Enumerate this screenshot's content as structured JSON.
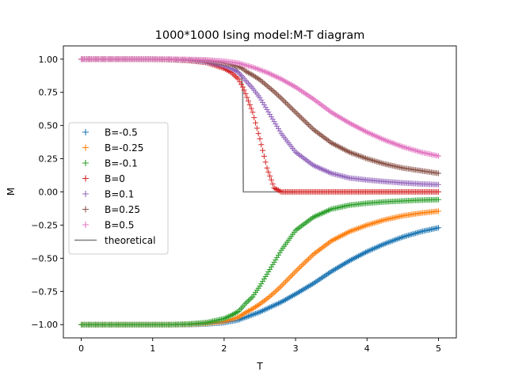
{
  "chart_data": {
    "type": "scatter",
    "title": "1000*1000 Ising model:M-T diagram",
    "xlabel": "T",
    "ylabel": "M",
    "xlim": [
      -0.25,
      5.25
    ],
    "ylim": [
      -1.1,
      1.1
    ],
    "xticks": [
      0,
      1,
      2,
      3,
      4,
      5
    ],
    "xtick_labels": [
      "0",
      "1",
      "2",
      "3",
      "4",
      "5"
    ],
    "yticks": [
      -1.0,
      -0.75,
      -0.5,
      -0.25,
      0.0,
      0.25,
      0.5,
      0.75,
      1.0
    ],
    "ytick_labels": [
      "−1.00",
      "−0.75",
      "−0.50",
      "−0.25",
      "0.00",
      "0.25",
      "0.50",
      "0.75",
      "1.00"
    ],
    "grid": false,
    "legend_position": "center-left",
    "x": [
      0.0,
      0.25,
      0.5,
      0.75,
      1.0,
      1.25,
      1.5,
      1.75,
      2.0,
      2.1,
      2.2,
      2.27,
      2.3,
      2.4,
      2.5,
      2.6,
      2.7,
      2.8,
      3.0,
      3.25,
      3.5,
      3.75,
      4.0,
      4.25,
      4.5,
      4.75,
      5.0
    ],
    "series": [
      {
        "name": "B=-0.5",
        "color": "#1f77b4",
        "marker": "+",
        "values": [
          -1.0,
          -1.0,
          -1.0,
          -1.0,
          -1.0,
          -1.0,
          -1.0,
          -0.995,
          -0.985,
          -0.975,
          -0.965,
          -0.95,
          -0.945,
          -0.925,
          -0.905,
          -0.88,
          -0.855,
          -0.83,
          -0.77,
          -0.69,
          -0.6,
          -0.52,
          -0.45,
          -0.39,
          -0.34,
          -0.3,
          -0.27
        ]
      },
      {
        "name": "B=-0.25",
        "color": "#ff7f0e",
        "marker": "+",
        "values": [
          -1.0,
          -1.0,
          -1.0,
          -1.0,
          -1.0,
          -1.0,
          -0.998,
          -0.99,
          -0.975,
          -0.96,
          -0.945,
          -0.92,
          -0.91,
          -0.88,
          -0.845,
          -0.805,
          -0.76,
          -0.71,
          -0.6,
          -0.47,
          -0.37,
          -0.3,
          -0.25,
          -0.21,
          -0.18,
          -0.16,
          -0.145
        ]
      },
      {
        "name": "B=-0.1",
        "color": "#2ca02c",
        "marker": "+",
        "values": [
          -1.0,
          -1.0,
          -1.0,
          -1.0,
          -1.0,
          -1.0,
          -0.995,
          -0.985,
          -0.955,
          -0.93,
          -0.9,
          -0.86,
          -0.84,
          -0.79,
          -0.71,
          -0.62,
          -0.53,
          -0.44,
          -0.29,
          -0.19,
          -0.13,
          -0.1,
          -0.085,
          -0.075,
          -0.068,
          -0.062,
          -0.058
        ]
      },
      {
        "name": "B=0",
        "color": "#d62728",
        "marker": "+",
        "values": [
          1.0,
          1.0,
          1.0,
          1.0,
          0.999,
          0.997,
          0.99,
          0.975,
          0.93,
          0.9,
          0.85,
          0.78,
          0.74,
          0.6,
          0.4,
          0.18,
          0.03,
          0.0,
          0.0,
          0.0,
          0.0,
          0.0,
          0.0,
          0.0,
          0.0,
          0.0,
          0.0
        ]
      },
      {
        "name": "B=0.1",
        "color": "#9467bd",
        "marker": "+",
        "values": [
          1.0,
          1.0,
          1.0,
          1.0,
          1.0,
          0.998,
          0.993,
          0.98,
          0.95,
          0.93,
          0.9,
          0.86,
          0.84,
          0.78,
          0.71,
          0.62,
          0.53,
          0.44,
          0.3,
          0.2,
          0.14,
          0.105,
          0.09,
          0.078,
          0.068,
          0.06,
          0.055
        ]
      },
      {
        "name": "B=0.25",
        "color": "#8c564b",
        "marker": "+",
        "values": [
          1.0,
          1.0,
          1.0,
          1.0,
          1.0,
          0.999,
          0.996,
          0.99,
          0.97,
          0.96,
          0.945,
          0.925,
          0.91,
          0.88,
          0.845,
          0.8,
          0.755,
          0.705,
          0.6,
          0.47,
          0.37,
          0.3,
          0.25,
          0.21,
          0.18,
          0.16,
          0.14
        ]
      },
      {
        "name": "B=0.5",
        "color": "#e377c2",
        "marker": "+",
        "values": [
          1.0,
          1.0,
          1.0,
          1.0,
          1.0,
          1.0,
          0.998,
          0.995,
          0.985,
          0.978,
          0.97,
          0.96,
          0.955,
          0.94,
          0.92,
          0.9,
          0.875,
          0.85,
          0.79,
          0.7,
          0.6,
          0.52,
          0.45,
          0.39,
          0.34,
          0.3,
          0.27
        ]
      },
      {
        "name": "theoretical",
        "color": "#7f7f7f",
        "marker": "line",
        "x": [
          0.0,
          1.0,
          1.5,
          1.8,
          2.0,
          2.1,
          2.15,
          2.2,
          2.24,
          2.26,
          2.269,
          2.269,
          2.5,
          3.0
        ],
        "values": [
          1.0,
          1.0,
          0.999,
          0.993,
          0.975,
          0.955,
          0.94,
          0.91,
          0.87,
          0.8,
          0.0,
          0.0,
          0.0,
          0.0
        ]
      }
    ]
  }
}
